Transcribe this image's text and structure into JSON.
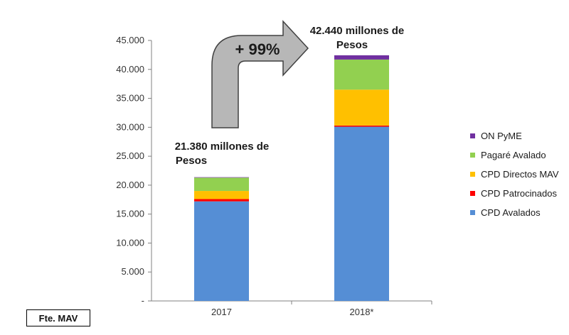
{
  "chart_data": {
    "type": "bar",
    "stacked": true,
    "categories": [
      "2017",
      "2018*"
    ],
    "series": [
      {
        "name": "CPD Avalados",
        "color": "#558ED5",
        "values": [
          17200,
          30100
        ]
      },
      {
        "name": "CPD Patrocinados",
        "color": "#FF0000",
        "values": [
          400,
          200
        ]
      },
      {
        "name": "CPD Directos MAV",
        "color": "#FFC000",
        "values": [
          1400,
          6200
        ]
      },
      {
        "name": "Pagaré Avalado",
        "color": "#92D050",
        "values": [
          2300,
          5200
        ]
      },
      {
        "name": "ON PyME",
        "color": "#7030A0",
        "values": [
          80,
          740
        ]
      }
    ],
    "ylim": [
      0,
      45000
    ],
    "yticks": [
      0,
      5000,
      10000,
      15000,
      20000,
      25000,
      30000,
      35000,
      40000,
      45000
    ],
    "ytick_labels": [
      "-",
      "5.000",
      "10.000",
      "15.000",
      "20.000",
      "25.000",
      "30.000",
      "35.000",
      "40.000",
      "45.000"
    ],
    "annotations": [
      {
        "lines": [
          "21.380 millones de",
          "Pesos"
        ]
      },
      {
        "lines": [
          "42.440 millones de",
          "Pesos"
        ]
      }
    ],
    "growth_label": "+ 99%",
    "legend_position": "right"
  },
  "source_label": "Fte. MAV"
}
